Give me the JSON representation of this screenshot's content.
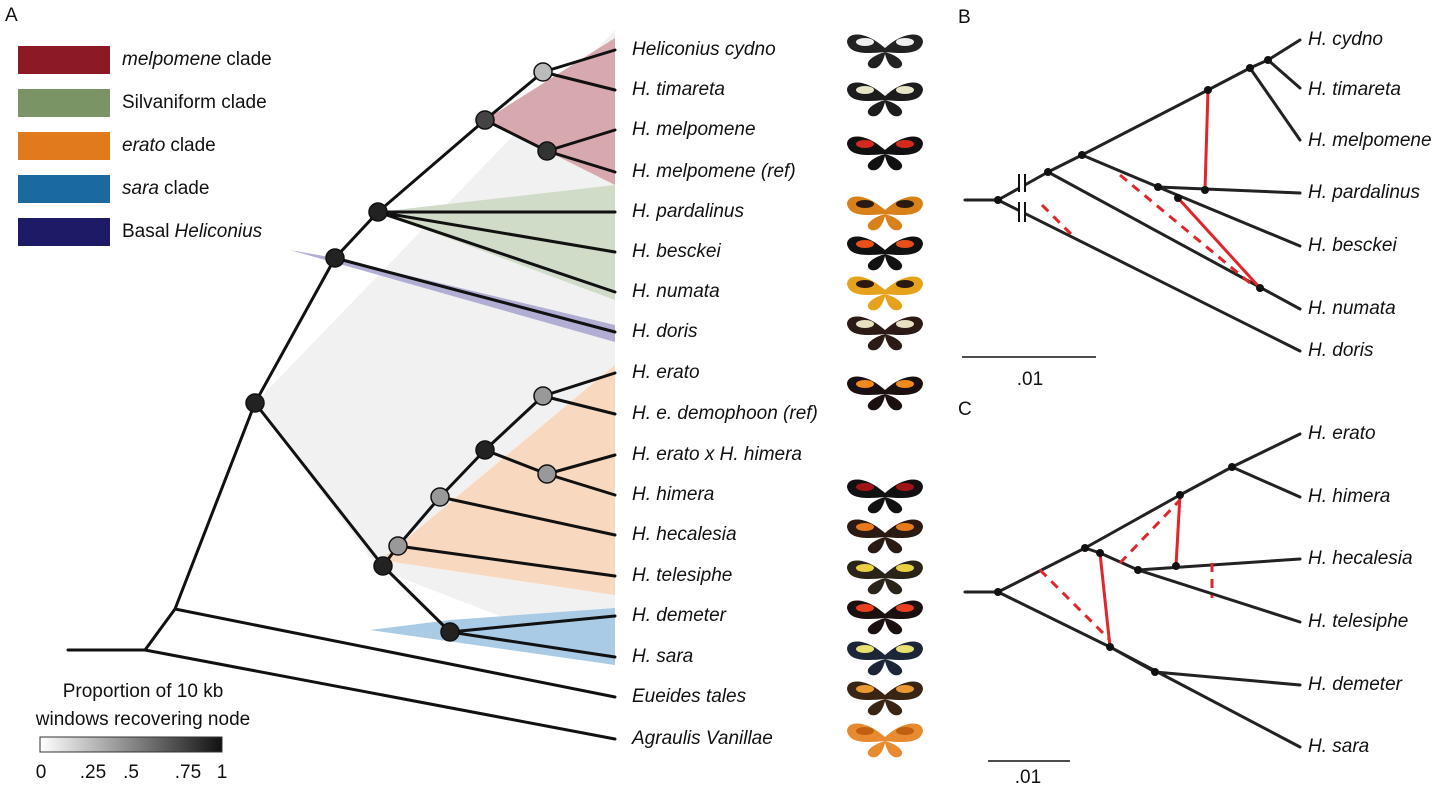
{
  "panels": {
    "a": "A",
    "b": "B",
    "c": "C"
  },
  "legend": [
    {
      "color": "#8b1a24",
      "parts": [
        {
          "text": "melpomene",
          "italic": true
        },
        {
          "text": "clade"
        }
      ]
    },
    {
      "color": "#7b9466",
      "parts": [
        {
          "text": "Silvaniform clade"
        }
      ]
    },
    {
      "color": "#e07a1c",
      "parts": [
        {
          "text": "erato",
          "italic": true
        },
        {
          "text": "clade"
        }
      ]
    },
    {
      "color": "#1a6aa0",
      "parts": [
        {
          "text": "sara",
          "italic": true
        },
        {
          "text": "clade"
        }
      ]
    },
    {
      "color": "#1e1b66",
      "parts": [
        {
          "text": "Basal"
        },
        {
          "text": "Heliconius",
          "italic": true
        }
      ]
    }
  ],
  "tree_a": {
    "tips": [
      "Heliconius cydno",
      "H. timareta",
      "H. melpomene",
      "H. melpomene (ref)",
      "H. pardalinus",
      "H. besckei",
      "H. numata",
      "H. doris",
      "H. erato",
      "H. e. demophoon (ref)",
      "H. erato x H. himera",
      "H. himera",
      "H. hecalesia",
      "H. telesiphe",
      "H. demeter",
      "H. sara",
      "Eueides tales",
      "Agraulis Vanillae"
    ]
  },
  "tree_b": {
    "tips": [
      "H. cydno",
      "H. timareta",
      "H. melpomene",
      "H. pardalinus",
      "H. besckei",
      "H. numata",
      "H. doris"
    ],
    "scale": ".01"
  },
  "tree_c": {
    "tips": [
      "H. erato",
      "H. himera",
      "H. hecalesia",
      "H. telesiphe",
      "H. demeter",
      "H. sara"
    ],
    "scale": ".01"
  },
  "colorbar": {
    "title": [
      "Proportion of 10 kb",
      "windows recovering node"
    ],
    "ticks": [
      "0",
      ".25",
      ".5",
      ".75",
      "1"
    ]
  }
}
